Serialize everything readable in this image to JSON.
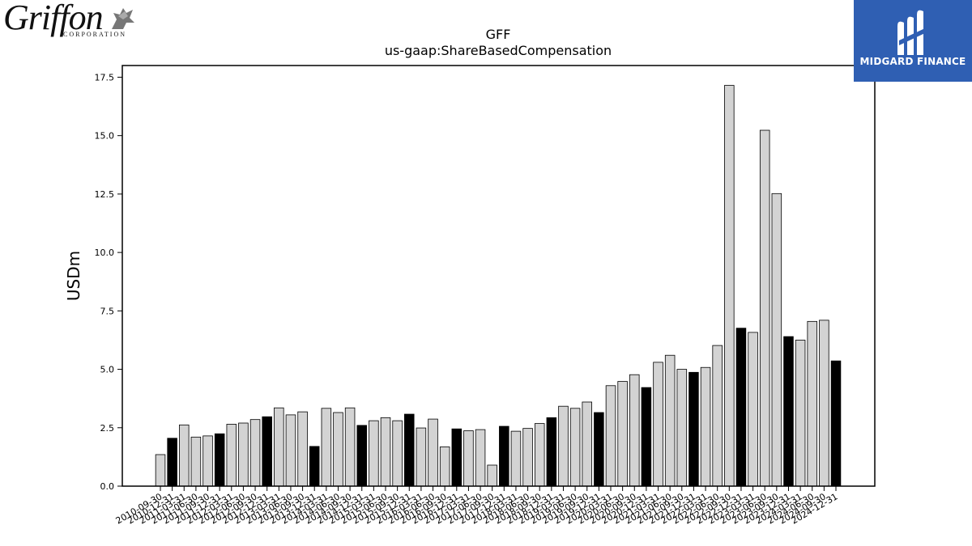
{
  "logos": {
    "left_text": "Griffon",
    "left_subtext": "CORPORATION",
    "right_text": "MIDGARD FINANCE"
  },
  "chart_data": {
    "type": "bar",
    "title": "GFF",
    "subtitle": "us-gaap:ShareBasedCompensation",
    "xlabel": "",
    "ylabel": "USDm",
    "ylim": [
      0,
      18
    ],
    "yticks": [
      0.0,
      2.5,
      5.0,
      7.5,
      10.0,
      12.5,
      15.0,
      17.5
    ],
    "grid": false,
    "colors": {
      "quarter": "#d3d3d3",
      "fiscal_year_end": "#000000",
      "edge": "#000000"
    },
    "categories": [
      "2010-09-30",
      "2010-12-31",
      "2011-03-31",
      "2011-06-30",
      "2011-09-30",
      "2011-12-31",
      "2012-03-31",
      "2012-06-30",
      "2012-09-30",
      "2012-12-31",
      "2013-03-31",
      "2013-06-30",
      "2013-09-30",
      "2013-12-31",
      "2014-03-31",
      "2014-06-30",
      "2014-09-30",
      "2014-12-31",
      "2015-03-31",
      "2015-06-30",
      "2015-09-30",
      "2015-12-31",
      "2016-03-31",
      "2016-06-30",
      "2016-09-30",
      "2016-12-31",
      "2017-03-31",
      "2017-06-30",
      "2017-09-30",
      "2017-12-31",
      "2018-03-31",
      "2018-06-30",
      "2018-09-30",
      "2018-12-31",
      "2019-03-31",
      "2019-06-30",
      "2019-09-30",
      "2019-12-31",
      "2020-03-31",
      "2020-06-30",
      "2020-09-30",
      "2020-12-31",
      "2021-03-31",
      "2021-06-30",
      "2021-09-30",
      "2021-12-31",
      "2022-03-31",
      "2022-06-30",
      "2022-09-30",
      "2022-12-31",
      "2023-03-31",
      "2023-06-30",
      "2023-09-30",
      "2023-12-31",
      "2024-03-31",
      "2024-06-30",
      "2024-09-30",
      "2024-12-31"
    ],
    "values": [
      1.35,
      2.05,
      2.62,
      2.1,
      2.15,
      2.24,
      2.65,
      2.7,
      2.85,
      2.97,
      3.35,
      3.05,
      3.18,
      1.7,
      3.33,
      3.15,
      3.35,
      2.6,
      2.8,
      2.93,
      2.8,
      3.08,
      2.49,
      2.87,
      1.68,
      2.45,
      2.37,
      2.42,
      0.9,
      2.56,
      2.35,
      2.47,
      2.68,
      2.93,
      3.42,
      3.33,
      3.6,
      3.15,
      4.3,
      4.48,
      4.77,
      4.22,
      5.3,
      5.6,
      5.0,
      4.87,
      5.08,
      6.02,
      17.15,
      6.76,
      6.58,
      15.23,
      12.52,
      6.4,
      6.25,
      7.05,
      7.1,
      5.36
    ],
    "fiscal_year_end": [
      false,
      true,
      false,
      false,
      false,
      true,
      false,
      false,
      false,
      true,
      false,
      false,
      false,
      true,
      false,
      false,
      false,
      true,
      false,
      false,
      false,
      true,
      false,
      false,
      false,
      true,
      false,
      false,
      false,
      true,
      false,
      false,
      false,
      true,
      false,
      false,
      false,
      true,
      false,
      false,
      false,
      true,
      false,
      false,
      false,
      true,
      false,
      false,
      false,
      true,
      false,
      false,
      false,
      true,
      false,
      false,
      false,
      true
    ]
  }
}
